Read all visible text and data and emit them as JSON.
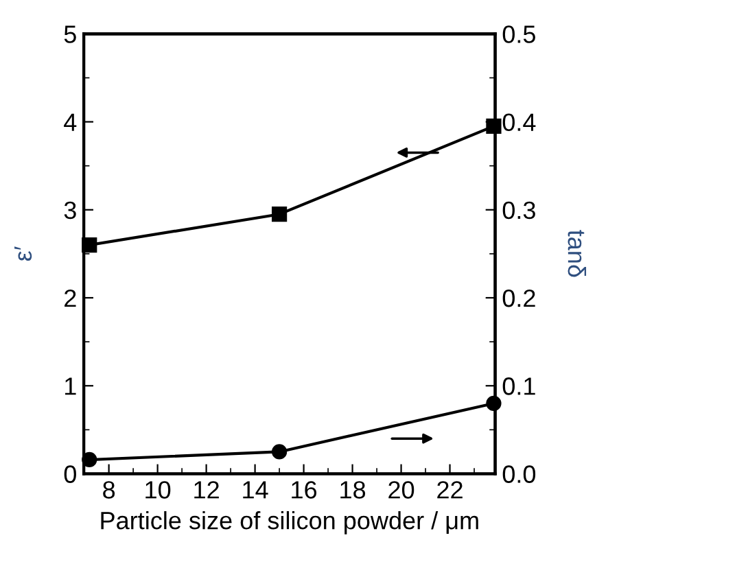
{
  "chart_data": {
    "type": "line",
    "xlabel": "Particle size of silicon powder / μm",
    "ylabel": "ε′",
    "y2label": "tanδ",
    "x": [
      7.2,
      15,
      23.8
    ],
    "series": [
      {
        "color": "#000000",
        "values": [
          2.6,
          2.95,
          3.95
        ],
        "marker": "square",
        "axis": "y"
      },
      {
        "color": "#000000",
        "values": [
          0.016,
          0.025,
          0.08
        ],
        "marker": "circle",
        "axis": "y2"
      }
    ],
    "xlim": [
      6.97,
      23.86
    ],
    "xticks": [
      8,
      10,
      12,
      14,
      16,
      18,
      20,
      22
    ],
    "ylim": [
      0,
      5
    ],
    "yticks": [
      0,
      1,
      2,
      3,
      4,
      5
    ],
    "y2lim": [
      0,
      0.5
    ],
    "y2ticks": [
      {
        "value": 0,
        "label": "0.0"
      },
      0.1,
      0.2,
      0.3,
      0.4,
      0.5
    ],
    "grid": false,
    "line_style": "solid"
  }
}
